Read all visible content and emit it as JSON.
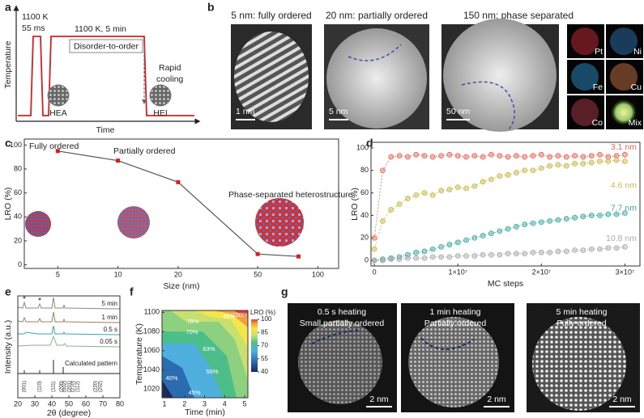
{
  "panel_labels": [
    "a",
    "b",
    "c",
    "d",
    "e",
    "f",
    "g"
  ],
  "a": {
    "y_label": "Temperature",
    "x_label": "Time",
    "pulse": [
      "1100 K",
      "55 ms"
    ],
    "anneal": "1100 K, 5 min",
    "process": "Disorder-to-order",
    "cooling": [
      "Rapid",
      "cooling"
    ],
    "start": "HEA",
    "end": "HEI"
  },
  "b": {
    "images": [
      {
        "title": "5 nm: fully ordered",
        "scale": "1 nm"
      },
      {
        "title": "20 nm: partially ordered",
        "scale": "5 nm"
      },
      {
        "title": "150 nm: phase separated",
        "scale": "50 nm"
      }
    ],
    "elements": [
      "Pt",
      "Ni",
      "Fe",
      "Cu",
      "Co",
      "Mix"
    ]
  },
  "chart_data": [
    {
      "type": "line",
      "x_label": "Size (nm)",
      "y_label": "LRO (%)",
      "x": [
        5,
        10,
        20,
        50,
        80
      ],
      "values": [
        95,
        87,
        69,
        9,
        7
      ],
      "color": "#d62020",
      "line_color": "#555555",
      "xscale": "log",
      "xlim": [
        3.4,
        127
      ],
      "xticks": [
        5,
        10,
        20,
        50,
        100
      ],
      "ylim": [
        -3,
        105
      ],
      "yticks": [
        0,
        20,
        40,
        60,
        80,
        100
      ],
      "annotations": [
        "Fully ordered",
        "Partially ordered",
        "Phase-separated heterostructure"
      ]
    },
    {
      "type": "scatter",
      "x_label": "MC steps",
      "y_label": "LRO (%)",
      "x": [
        0,
        1000000,
        2000000,
        3000000,
        4000000,
        5000000,
        6000000,
        7000000,
        8000000,
        9000000,
        10000000,
        11000000,
        12000000,
        13000000,
        14000000,
        15000000,
        16000000,
        17000000,
        18000000,
        19000000,
        20000000,
        21000000,
        22000000,
        23000000,
        24000000,
        25000000,
        26000000,
        27000000,
        28000000,
        29000000,
        30000000
      ],
      "series": [
        {
          "name": "3.1 nm",
          "color": "#e8685a",
          "values": [
            20,
            80,
            92,
            93,
            92,
            94,
            93,
            92,
            93,
            94,
            93,
            92,
            93,
            92,
            94,
            93,
            92,
            93,
            92,
            93,
            94,
            92,
            93,
            92,
            93,
            92,
            93,
            94,
            92,
            93,
            94
          ]
        },
        {
          "name": "4.6 nm",
          "color": "#c8b84a",
          "values": [
            10,
            35,
            45,
            50,
            55,
            58,
            60,
            58,
            62,
            63,
            65,
            64,
            66,
            70,
            72,
            75,
            76,
            78,
            80,
            80,
            82,
            84,
            85,
            84,
            86,
            86,
            87,
            88,
            88,
            89,
            88
          ]
        },
        {
          "name": "7.7 nm",
          "color": "#3fa9a5",
          "values": [
            0,
            1,
            2,
            3,
            5,
            7,
            8,
            10,
            12,
            14,
            16,
            18,
            20,
            22,
            24,
            26,
            28,
            30,
            32,
            33,
            34,
            35,
            36,
            37,
            38,
            39,
            40,
            40,
            41,
            41,
            42
          ]
        },
        {
          "name": "10.8 nm",
          "color": "#aaaaaa",
          "values": [
            0,
            0,
            1,
            1,
            2,
            2,
            2,
            3,
            3,
            3,
            4,
            4,
            4,
            5,
            5,
            5,
            6,
            6,
            6,
            7,
            7,
            7,
            8,
            8,
            9,
            9,
            10,
            10,
            11,
            11,
            12
          ]
        }
      ],
      "xlim": [
        -400000,
        31800000
      ],
      "xticks": [
        0,
        {
          "value": 10000000,
          "label": "1×10⁷"
        },
        {
          "value": 20000000,
          "label": "2×10⁷"
        },
        {
          "value": 30000000,
          "label": "3×10⁷"
        }
      ],
      "ylim": [
        -5,
        105
      ],
      "yticks": [
        0,
        20,
        40,
        60,
        80,
        100
      ]
    },
    {
      "type": "xrd",
      "x_label": "2θ (degree)",
      "y_label": "Intensity (a.u.)",
      "xlim": [
        20,
        80
      ],
      "xticks": [
        20,
        30,
        40,
        50,
        60,
        70,
        80
      ],
      "series_labels": [
        "5 min",
        "1 min",
        "0.5 s",
        "0.05 s",
        "Calculated pattern"
      ],
      "markers": [
        "*",
        "*"
      ],
      "reflections": [
        "(001)",
        "(110)",
        "(111)",
        "(200)",
        "(002)",
        "(201)",
        "(210)",
        "(112)",
        "(220)",
        "(202)"
      ]
    },
    {
      "type": "contour",
      "x_label": "Time (min)",
      "y_label": "Temperature (K)",
      "xlim": [
        0.88,
        5.16
      ],
      "xticks": [
        1,
        2,
        3,
        4,
        5
      ],
      "ylim": [
        1011,
        1102
      ],
      "yticks": [
        1020,
        1040,
        1060,
        1080,
        1100
      ],
      "colorbar_label": "LRO (%)",
      "clim": [
        40,
        100
      ],
      "cticks": [
        40,
        55,
        70,
        85,
        100
      ],
      "contour_labels": [
        "40%",
        "45%",
        "55%",
        "63%",
        "70%",
        "78%",
        "85%",
        "100%"
      ]
    }
  ],
  "g": {
    "images": [
      {
        "lines": [
          "0.5 s heating",
          "Small partially ordered"
        ],
        "scale": "2 nm"
      },
      {
        "lines": [
          "1 min heating",
          "Partially ordered"
        ],
        "scale": "2 nm"
      },
      {
        "lines": [
          "5 min heating",
          "Fully ordered"
        ],
        "scale": "2 nm"
      }
    ]
  }
}
